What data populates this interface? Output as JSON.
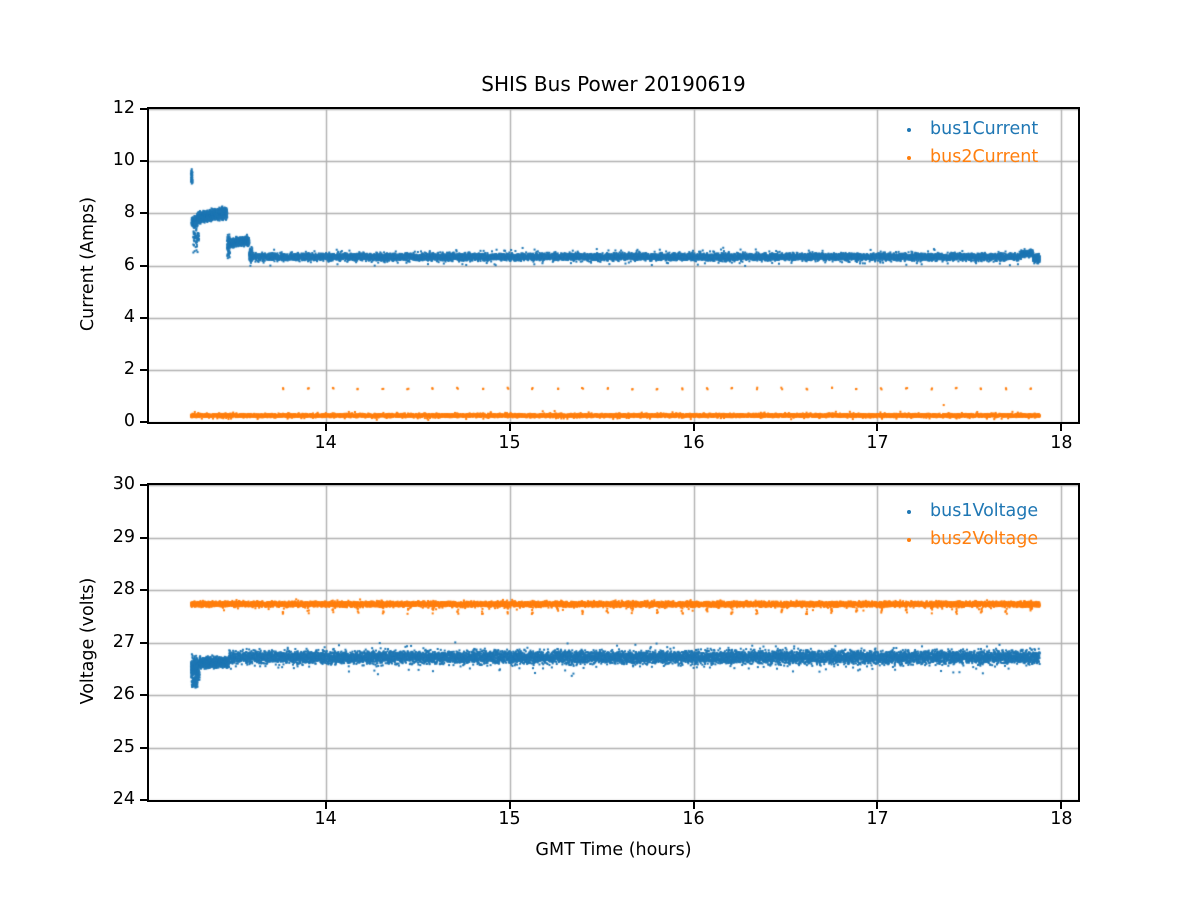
{
  "figure": {
    "title": "SHIS Bus Power 20190619",
    "background": "#ffffff",
    "grid_color": "#b0b0b0",
    "spine_color": "#000000",
    "text_color": "#000000"
  },
  "chart_data": [
    {
      "type": "scatter",
      "title": "SHIS Bus Power 20190619",
      "xlabel": "",
      "ylabel": "Current (Amps)",
      "xlim": [
        13.04,
        18.09
      ],
      "ylim": [
        0,
        12
      ],
      "xticks": [
        14,
        15,
        16,
        17,
        18
      ],
      "yticks": [
        0,
        2,
        4,
        6,
        8,
        10,
        12
      ],
      "grid": true,
      "legend": {
        "position": "upper right",
        "entries": [
          {
            "label": "bus1Current",
            "color": "#1f77b4"
          },
          {
            "label": "bus2Current",
            "color": "#ff7f0e"
          }
        ]
      },
      "series": [
        {
          "name": "bus1Current",
          "color": "#1f77b4",
          "marker": "dot",
          "segments": [
            {
              "t0": 13.268,
              "t1": 13.277,
              "mean": 9.35,
              "spread": 0.27,
              "n": 30
            },
            {
              "t0": 13.272,
              "t1": 13.302,
              "mean": 7.67,
              "spread": 0.15,
              "n": 260
            },
            {
              "t0": 13.28,
              "t1": 13.312,
              "mean": 7.05,
              "spread": 0.42,
              "n": 60
            },
            {
              "t0": 13.302,
              "t1": 13.465,
              "mean": 7.82,
              "mean_end": 8.03,
              "spread": 0.17,
              "n": 1300
            },
            {
              "t0": 13.465,
              "t1": 13.48,
              "mean": 6.75,
              "spread": 0.38,
              "n": 90
            },
            {
              "t0": 13.48,
              "t1": 13.585,
              "mean": 6.86,
              "mean_end": 6.96,
              "spread": 0.13,
              "n": 750
            },
            {
              "t0": 13.585,
              "t1": 13.602,
              "mean": 6.38,
              "spread": 0.25,
              "n": 90
            },
            {
              "t0": 13.602,
              "t1": 17.78,
              "mean": 6.33,
              "spread": 0.11,
              "n": 9500
            },
            {
              "t0": 13.602,
              "t1": 17.78,
              "mean": 6.33,
              "spread": 0.24,
              "n": 700
            },
            {
              "t0": 17.78,
              "t1": 17.845,
              "mean": 6.46,
              "spread": 0.1,
              "n": 350
            },
            {
              "t0": 17.845,
              "t1": 17.882,
              "mean": 6.27,
              "spread": 0.13,
              "n": 180
            }
          ]
        },
        {
          "name": "bus2Current",
          "color": "#ff7f0e",
          "marker": "dot",
          "segments": [
            {
              "t0": 13.268,
              "t1": 17.882,
              "mean": 0.25,
              "spread": 0.05,
              "n": 9500
            },
            {
              "t0": 13.268,
              "t1": 17.882,
              "mean": 0.24,
              "spread": 0.1,
              "n": 700
            }
          ],
          "pulses": {
            "start": 13.77,
            "end": 17.85,
            "interval": 0.1355,
            "value": 1.28,
            "spread": 0.035,
            "n_per": 2
          },
          "outliers": [
            {
              "t": 15.245,
              "v": 0.42
            },
            {
              "t": 15.43,
              "v": 0.37
            },
            {
              "t": 17.36,
              "v": 0.65
            }
          ]
        }
      ]
    },
    {
      "type": "scatter",
      "title": "",
      "xlabel": "GMT Time (hours)",
      "ylabel": "Voltage (volts)",
      "xlim": [
        13.04,
        18.09
      ],
      "ylim": [
        24,
        30
      ],
      "xticks": [
        14,
        15,
        16,
        17,
        18
      ],
      "yticks": [
        24,
        25,
        26,
        27,
        28,
        29,
        30
      ],
      "grid": true,
      "legend": {
        "position": "upper right",
        "entries": [
          {
            "label": "bus1Voltage",
            "color": "#1f77b4"
          },
          {
            "label": "bus2Voltage",
            "color": "#ff7f0e"
          }
        ]
      },
      "series": [
        {
          "name": "bus1Voltage",
          "color": "#1f77b4",
          "marker": "dot",
          "segments": [
            {
              "t0": 13.268,
              "t1": 13.315,
              "mean": 26.5,
              "spread": 0.17,
              "n": 280
            },
            {
              "t0": 13.272,
              "t1": 13.305,
              "mean": 26.24,
              "spread": 0.09,
              "n": 70
            },
            {
              "t0": 13.315,
              "t1": 13.475,
              "mean": 26.62,
              "spread": 0.08,
              "n": 950
            },
            {
              "t0": 13.475,
              "t1": 17.882,
              "mean": 26.72,
              "spread": 0.1,
              "n": 10000
            },
            {
              "t0": 13.475,
              "t1": 17.882,
              "mean": 26.7,
              "spread": 0.19,
              "n": 650
            }
          ]
        },
        {
          "name": "bus2Voltage",
          "color": "#ff7f0e",
          "marker": "dot",
          "segments": [
            {
              "t0": 13.268,
              "t1": 17.882,
              "mean": 27.73,
              "spread": 0.04,
              "n": 10000
            },
            {
              "t0": 13.268,
              "t1": 17.882,
              "mean": 27.72,
              "spread": 0.07,
              "n": 500
            }
          ],
          "pulses": {
            "start": 13.77,
            "end": 17.85,
            "interval": 0.1355,
            "value": 27.6,
            "spread": 0.06,
            "n_per": 4
          }
        }
      ]
    }
  ]
}
